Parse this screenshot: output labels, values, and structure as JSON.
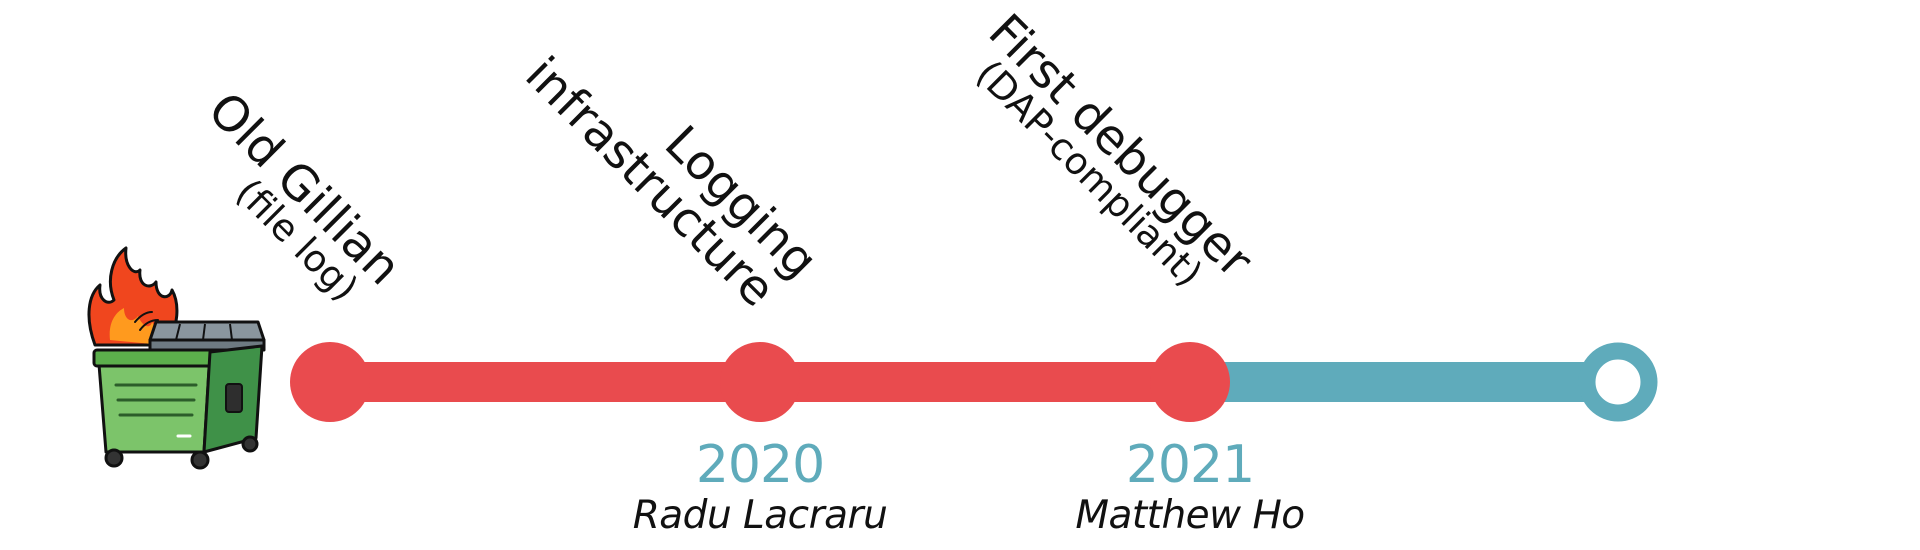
{
  "colors": {
    "done": "#e94b4e",
    "future": "#5fabbb",
    "text": "#111111",
    "year": "#5fabbb"
  },
  "icons": {
    "start": "burning-dumpster-icon"
  },
  "milestones": [
    {
      "title": "Old Gillian",
      "subtitle": "(file log)"
    },
    {
      "title": "Logging",
      "subtitle": "infrastructure"
    },
    {
      "title": "First debugger",
      "subtitle": "(DAP-compliant)"
    }
  ],
  "years": [
    {
      "year": "2020",
      "author": "Radu Lacraru"
    },
    {
      "year": "2021",
      "author": "Matthew Ho"
    }
  ]
}
